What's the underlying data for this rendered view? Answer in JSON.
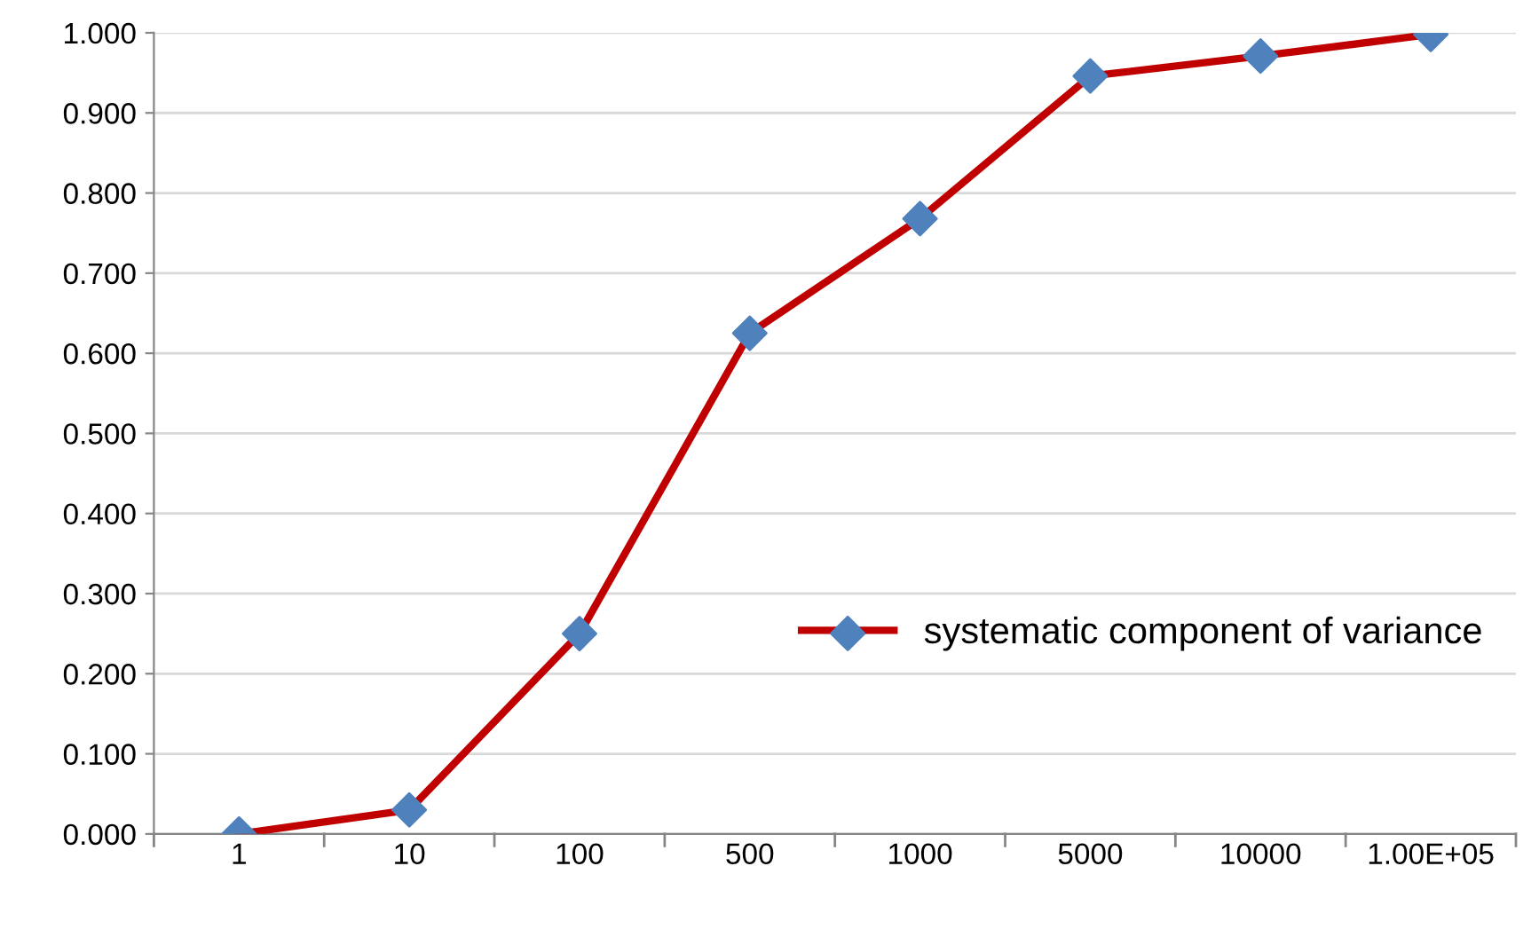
{
  "chart_data": {
    "type": "line",
    "categories": [
      "1",
      "10",
      "100",
      "500",
      "1000",
      "5000",
      "10000",
      "1.00E+05"
    ],
    "series": [
      {
        "name": "systematic component of variance",
        "color": "#c00000",
        "values": [
          0.0,
          0.03,
          0.25,
          0.625,
          0.768,
          0.946,
          0.971,
          0.998
        ],
        "colors": [
          "#4f81bd",
          "#4f81bd",
          "#4f81bd",
          "#4f81bd",
          "#4f81bd",
          "#4f81bd",
          "#4f81bd",
          "#4f81bd"
        ]
      }
    ],
    "marker": "diamond",
    "ylim": [
      0,
      1
    ],
    "yticks": [
      {
        "value": 0,
        "label": "0.000"
      },
      {
        "value": 0.1,
        "label": "0.100"
      },
      {
        "value": 0.2,
        "label": "0.200"
      },
      {
        "value": 0.3,
        "label": "0.300"
      },
      {
        "value": 0.4,
        "label": "0.400"
      },
      {
        "value": 0.5,
        "label": "0.500"
      },
      {
        "value": 0.6,
        "label": "0.600"
      },
      {
        "value": 0.7,
        "label": "0.700"
      },
      {
        "value": 0.8,
        "label": "0.800"
      },
      {
        "value": 0.9,
        "label": "0.900"
      },
      {
        "value": 1,
        "label": "1.000"
      }
    ],
    "grid": "y",
    "legend": "right"
  }
}
